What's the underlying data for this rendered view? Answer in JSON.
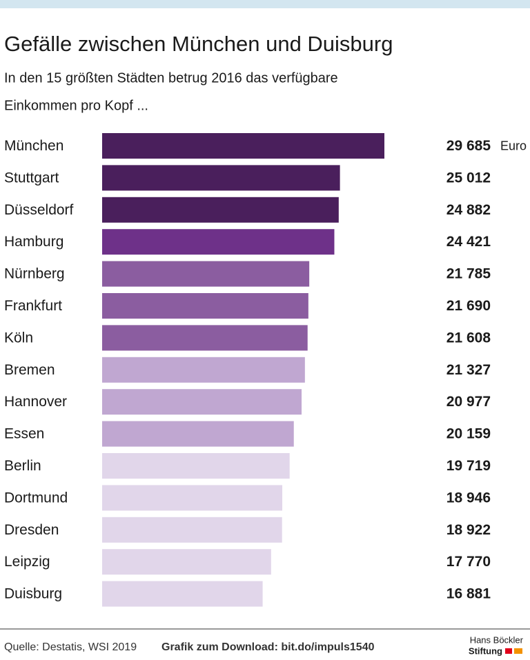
{
  "chart_data": {
    "type": "bar",
    "orientation": "horizontal",
    "title": "Gefälle zwischen München und Duisburg",
    "subtitle": [
      "In den 15 größten Städten betrug 2016 das verfügbare",
      "Einkommen pro Kopf ..."
    ],
    "unit": "Euro",
    "categories": [
      "München",
      "Stuttgart",
      "Düsseldorf",
      "Hamburg",
      "Nürnberg",
      "Frankfurt",
      "Köln",
      "Bremen",
      "Hannover",
      "Essen",
      "Berlin",
      "Dortmund",
      "Dresden",
      "Leipzig",
      "Duisburg"
    ],
    "values": [
      29685,
      25012,
      24882,
      24421,
      21785,
      21690,
      21608,
      21327,
      20977,
      20159,
      19719,
      18946,
      18922,
      17770,
      16881
    ],
    "value_labels": [
      "29 685",
      "25 012",
      "24 882",
      "24 421",
      "21 785",
      "21 690",
      "21 608",
      "21 327",
      "20 977",
      "20 159",
      "19 719",
      "18 946",
      "18 922",
      "17 770",
      "16 881"
    ],
    "colors": [
      "#4a1f5c",
      "#4a1f5c",
      "#4a1f5c",
      "#6e3189",
      "#8b5da0",
      "#8b5da0",
      "#8b5da0",
      "#c0a7d1",
      "#c0a7d1",
      "#c0a7d1",
      "#e1d6ea",
      "#e1d6ea",
      "#e1d6ea",
      "#e1d6ea",
      "#e1d6ea"
    ],
    "label_colors": [
      "#4a1f5c",
      "#4a1f5c",
      "#4a1f5c",
      "#6e3189",
      "#8b5da0",
      "#8b5da0",
      "#8b5da0",
      "#a88bbf",
      "#a88bbf",
      "#a88bbf",
      "#cdb9dd",
      "#cdb9dd",
      "#cdb9dd",
      "#cdb9dd",
      "#cdb9dd"
    ]
  },
  "footer": {
    "source": "Quelle: Destatis, WSI 2019",
    "download": "Grafik zum Download: bit.do/impuls1540",
    "logo": [
      "Hans Böckler",
      "Stiftung"
    ]
  }
}
